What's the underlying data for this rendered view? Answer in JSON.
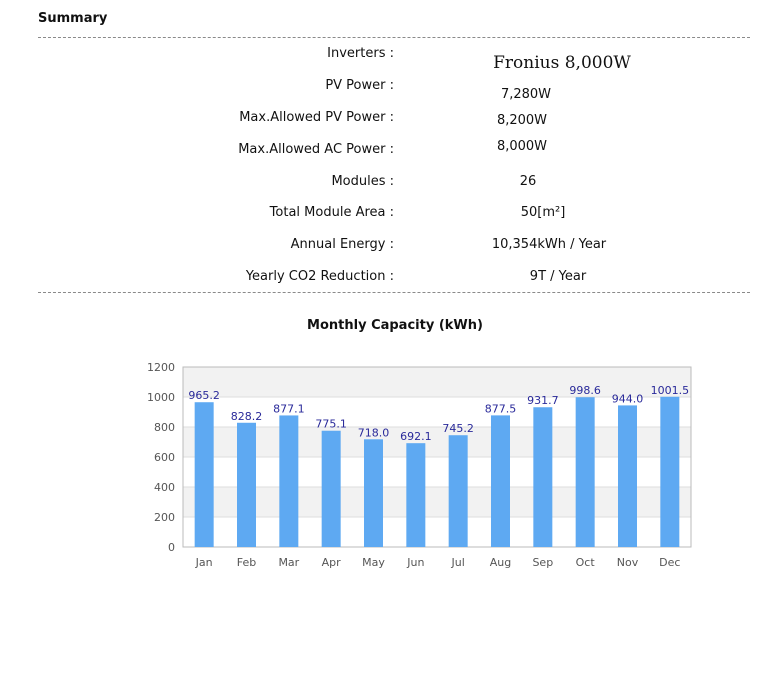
{
  "summary": {
    "title": "Summary",
    "rows": [
      {
        "label": "Inverters :",
        "value": "Fronius  8,000W"
      },
      {
        "label": "PV Power :",
        "value": "7,280W"
      },
      {
        "label": "Max.Allowed PV Power :",
        "value": "8,200W"
      },
      {
        "label": "Max.Allowed AC Power :",
        "value": "8,000W"
      },
      {
        "label": "Modules :",
        "value": "26"
      },
      {
        "label": "Total Module Area :",
        "value": "50[m²]"
      },
      {
        "label": "Annual Energy :",
        "value": "10,354kWh / Year"
      },
      {
        "label": "Yearly CO2 Reduction :",
        "value": "9T / Year"
      }
    ]
  },
  "chart_data": {
    "type": "bar",
    "title": "Monthly Capacity (kWh)",
    "xlabel": "",
    "ylabel": "",
    "categories": [
      "Jan",
      "Feb",
      "Mar",
      "Apr",
      "May",
      "Jun",
      "Jul",
      "Aug",
      "Sep",
      "Oct",
      "Nov",
      "Dec"
    ],
    "values": [
      965.2,
      828.2,
      877.1,
      775.1,
      718.0,
      692.1,
      745.2,
      877.5,
      931.7,
      998.6,
      944.0,
      1001.5
    ],
    "value_labels": [
      "965.2",
      "828.2",
      "877.1",
      "775.1",
      "718.0",
      "692.1",
      "745.2",
      "877.5",
      "931.7",
      "998.6",
      "944.0",
      "1001.5"
    ],
    "ylim": [
      0,
      1200
    ],
    "yticks": [
      0,
      200,
      400,
      600,
      800,
      1000,
      1200
    ],
    "grid": true,
    "legend": "none",
    "colors": {
      "bar": "#5ea9f2",
      "label": "#2a2a9a",
      "band": "#f2f2f2",
      "axis": "#bbbbbb"
    }
  }
}
